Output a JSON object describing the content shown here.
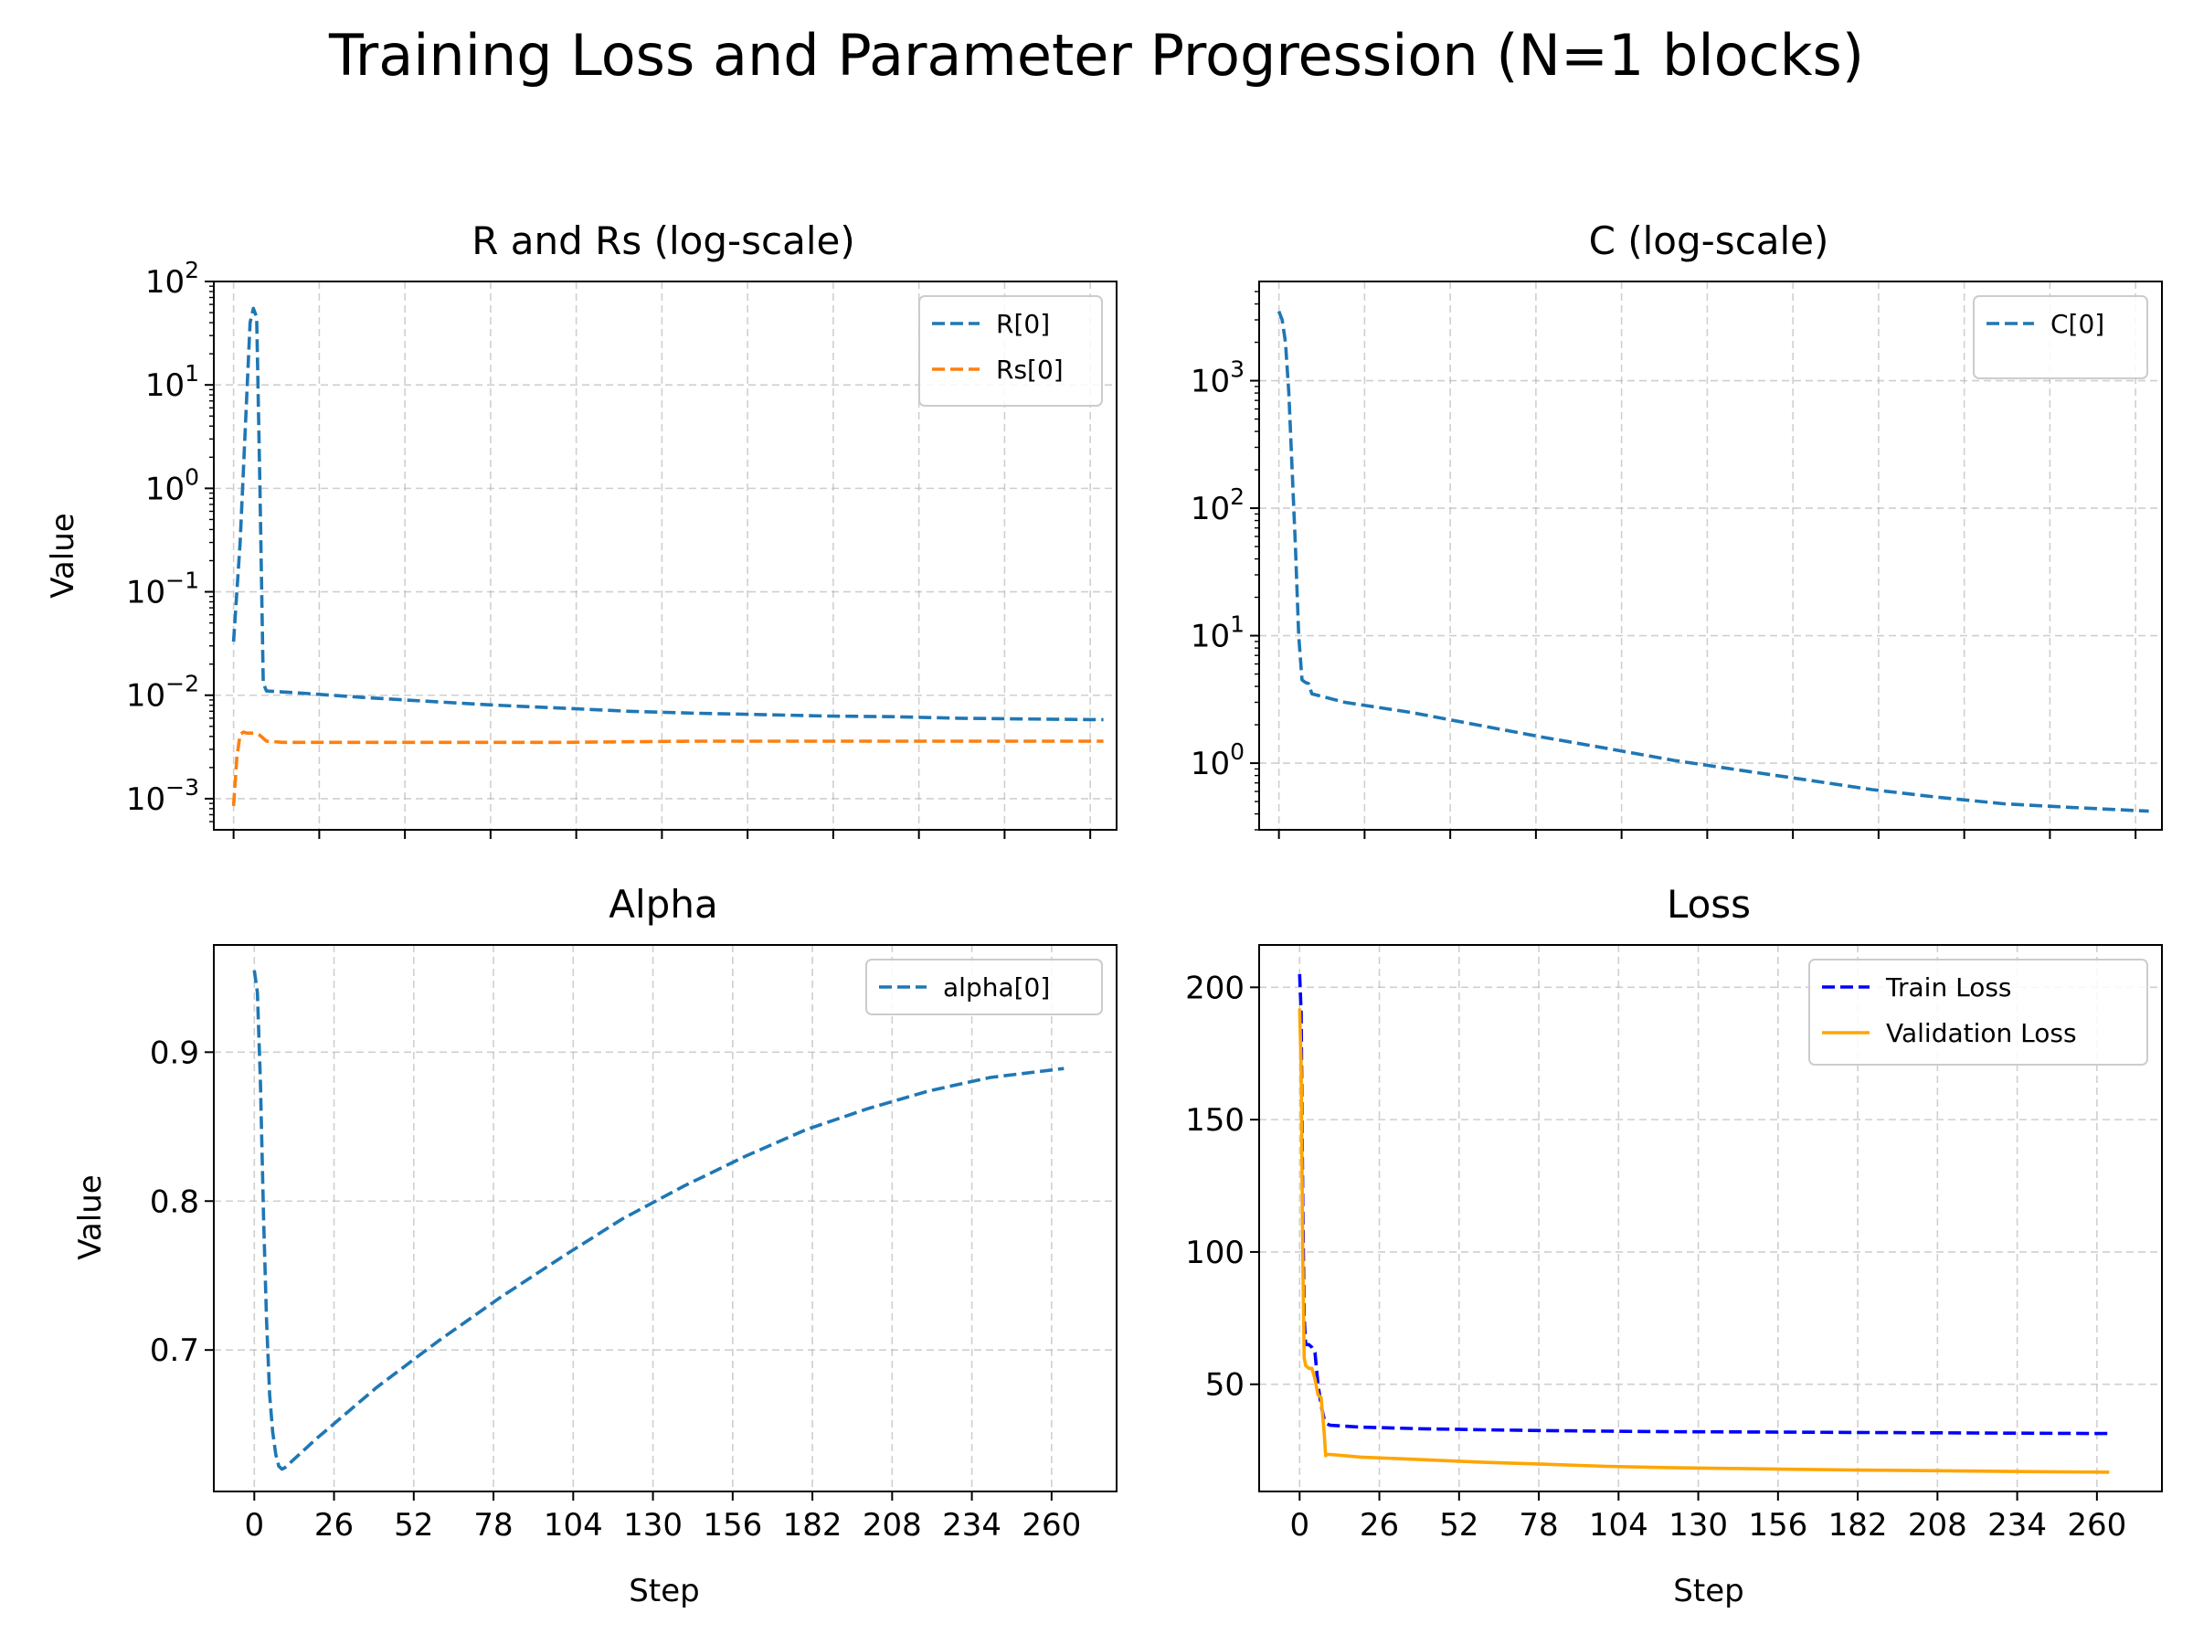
{
  "figure": {
    "title": "Training Loss and Parameter Progression (N=1 blocks)"
  },
  "chart_data": [
    {
      "type": "line",
      "title": "R and Rs (log-scale)",
      "xlabel": "",
      "ylabel": "Value",
      "yscale": "log",
      "xlim": [
        -6,
        268
      ],
      "ylim": [
        0.0005,
        100
      ],
      "xticks": [
        0,
        26,
        52,
        78,
        104,
        130,
        156,
        182,
        208,
        234,
        260
      ],
      "xtick_labels_visible": false,
      "yticks": [
        {
          "value": 0.001,
          "base": "10",
          "exp": "−3"
        },
        {
          "value": 0.01,
          "base": "10",
          "exp": "−2"
        },
        {
          "value": 0.1,
          "base": "10",
          "exp": "−1"
        },
        {
          "value": 1,
          "base": "10",
          "exp": "0"
        },
        {
          "value": 10,
          "base": "10",
          "exp": "1"
        },
        {
          "value": 100,
          "base": "10",
          "exp": "2"
        }
      ],
      "grid": true,
      "legend": "top-right",
      "series": [
        {
          "name": "R[0]",
          "color": "#1f77b4",
          "style": "dashed",
          "x": [
            0,
            2,
            4,
            5,
            6,
            7,
            8,
            9,
            10,
            20,
            40,
            60,
            80,
            100,
            120,
            140,
            160,
            180,
            200,
            220,
            240,
            264
          ],
          "y": [
            0.033,
            0.3,
            8,
            40,
            55,
            45,
            1,
            0.013,
            0.011,
            0.0105,
            0.0095,
            0.0087,
            0.008,
            0.0075,
            0.007,
            0.0067,
            0.0065,
            0.0063,
            0.0062,
            0.006,
            0.0059,
            0.0058
          ]
        },
        {
          "name": "Rs[0]",
          "color": "#ff7f0e",
          "style": "dashed",
          "x": [
            0,
            1,
            2,
            3,
            4,
            6,
            8,
            10,
            15,
            30,
            60,
            100,
            140,
            180,
            220,
            264
          ],
          "y": [
            0.00085,
            0.0025,
            0.0042,
            0.0044,
            0.0043,
            0.0043,
            0.0041,
            0.0036,
            0.0035,
            0.0035,
            0.0035,
            0.0035,
            0.0036,
            0.0036,
            0.0036,
            0.0036
          ]
        }
      ]
    },
    {
      "type": "line",
      "title": "C (log-scale)",
      "xlabel": "",
      "ylabel": "",
      "yscale": "log",
      "xlim": [
        -6,
        268
      ],
      "ylim": [
        0.3,
        6000
      ],
      "xticks": [
        0,
        26,
        52,
        78,
        104,
        130,
        156,
        182,
        208,
        234,
        260
      ],
      "xtick_labels_visible": false,
      "yticks": [
        {
          "value": 1,
          "base": "10",
          "exp": "0"
        },
        {
          "value": 10,
          "base": "10",
          "exp": "1"
        },
        {
          "value": 100,
          "base": "10",
          "exp": "2"
        },
        {
          "value": 1000,
          "base": "10",
          "exp": "3"
        }
      ],
      "grid": true,
      "legend": "top-right",
      "series": [
        {
          "name": "C[0]",
          "color": "#1f77b4",
          "style": "dashed",
          "x": [
            0,
            1,
            2,
            3,
            4,
            5,
            6,
            7,
            8,
            9,
            10,
            20,
            40,
            60,
            80,
            100,
            120,
            140,
            160,
            180,
            200,
            220,
            240,
            264
          ],
          "y": [
            3500,
            3000,
            2000,
            800,
            200,
            50,
            10,
            4.5,
            4.3,
            4.2,
            3.5,
            3.0,
            2.5,
            2.0,
            1.6,
            1.3,
            1.05,
            0.88,
            0.74,
            0.62,
            0.54,
            0.48,
            0.45,
            0.42
          ]
        }
      ]
    },
    {
      "type": "line",
      "title": "Alpha",
      "xlabel": "Step",
      "ylabel": "Value",
      "yscale": "linear",
      "xlim": [
        -13.2,
        281.2
      ],
      "ylim": [
        0.605,
        0.972
      ],
      "xticks": [
        0,
        26,
        52,
        78,
        104,
        130,
        156,
        182,
        208,
        234,
        260
      ],
      "yticks": [
        0.7,
        0.8,
        0.9
      ],
      "grid": true,
      "legend": "top-right",
      "series": [
        {
          "name": "alpha[0]",
          "color": "#1f77b4",
          "style": "dashed",
          "x": [
            0,
            1,
            2,
            3,
            4,
            5,
            6,
            7,
            8,
            9,
            10,
            20,
            40,
            60,
            80,
            100,
            120,
            140,
            160,
            180,
            200,
            220,
            240,
            264
          ],
          "y": [
            0.955,
            0.94,
            0.88,
            0.79,
            0.72,
            0.67,
            0.645,
            0.63,
            0.622,
            0.62,
            0.621,
            0.64,
            0.675,
            0.706,
            0.735,
            0.762,
            0.788,
            0.81,
            0.83,
            0.848,
            0.862,
            0.874,
            0.883,
            0.889
          ]
        }
      ]
    },
    {
      "type": "line",
      "title": "Loss",
      "xlabel": "Step",
      "ylabel": "",
      "yscale": "linear",
      "xlim": [
        -13.2,
        281.2
      ],
      "ylim": [
        9.5,
        216
      ],
      "xticks": [
        0,
        26,
        52,
        78,
        104,
        130,
        156,
        182,
        208,
        234,
        260
      ],
      "yticks": [
        50,
        100,
        150,
        200
      ],
      "grid": true,
      "legend": "top-right",
      "series": [
        {
          "name": "Train Loss",
          "color": "#0000ff",
          "style": "dashed",
          "x": [
            0,
            0.5,
            1,
            1.5,
            2,
            3,
            4,
            5,
            6,
            7,
            8,
            9,
            10,
            20,
            40,
            60,
            80,
            100,
            120,
            140,
            160,
            180,
            200,
            220,
            240,
            264
          ],
          "y": [
            205,
            190,
            120,
            75,
            65,
            65,
            64,
            62,
            50,
            42,
            37,
            35,
            34.5,
            33.8,
            33.2,
            32.8,
            32.5,
            32.3,
            32.1,
            32.0,
            31.9,
            31.8,
            31.7,
            31.6,
            31.5,
            31.4
          ]
        },
        {
          "name": "Validation Loss",
          "color": "#ffa500",
          "style": "solid",
          "x": [
            0,
            0.5,
            1,
            1.5,
            2,
            3,
            4,
            5,
            6,
            7,
            8,
            8.5,
            9,
            10,
            20,
            40,
            60,
            80,
            100,
            120,
            140,
            160,
            180,
            200,
            220,
            240,
            264
          ],
          "y": [
            192,
            170,
            100,
            60,
            57,
            56,
            56,
            52,
            46,
            45,
            32,
            23,
            23.5,
            23.5,
            22.5,
            21.5,
            20.5,
            19.8,
            19,
            18.5,
            18.2,
            17.9,
            17.6,
            17.4,
            17.2,
            17.0,
            16.8
          ]
        }
      ]
    }
  ]
}
